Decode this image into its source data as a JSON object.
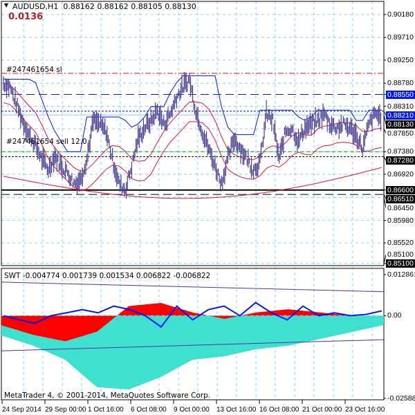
{
  "header": {
    "symbol": "AUDUSD,H1",
    "ohlc": "0.88162 0.88162 0.88105 0.88130",
    "value": "0.0136"
  },
  "orders": {
    "sl_label": "#247461654 sl",
    "sell_label": "#247461654 sell 12.0"
  },
  "indicator": {
    "label": "SWT -0.004774 0.001739 0.001534 0.006822 -0.006822"
  },
  "copyright": "MetaTrader 4, © 2001-2014, MetaQuotes Software Corp.",
  "colors": {
    "bars": "#4a4090",
    "blue": "#0018f0",
    "red": "#e0103a",
    "cyan": "#40e0d0",
    "area_red": "#ff0000",
    "purple": "#5030a0",
    "grid": "#87cefa"
  },
  "chart_data": [
    {
      "type": "line",
      "title": "AUDUSD,H1",
      "price_ticks": [
        "0.90180",
        "0.89710",
        "0.89250",
        "0.88780",
        "0.88310",
        "0.87850",
        "0.87380",
        "0.86920",
        "0.86450",
        "0.85980",
        "0.85520",
        "0.85100"
      ],
      "price_tick_values": [
        0.9018,
        0.8971,
        0.8925,
        0.8878,
        0.8831,
        0.8785,
        0.8738,
        0.8692,
        0.8645,
        0.8598,
        0.8552,
        0.851
      ],
      "ylim": [
        0.851,
        0.9018
      ],
      "time_ticks": [
        "24 Sep 2014",
        "29 Sep 00:00",
        "1 Oct 16:00",
        "6 Oct 08:00",
        "9 Oct 00:00",
        "13 Oct 16:00",
        "16 Oct 08:00",
        "21 Oct 00:00",
        "23 Oct 16:00"
      ],
      "price_tags": [
        {
          "value": "0.88550",
          "price": 0.8855,
          "color": "#0018f0"
        },
        {
          "value": "0.88130",
          "price": 0.8813,
          "color": "#000000"
        },
        {
          "value": "0.88210",
          "price": 0.8821,
          "color": "#0018f0"
        },
        {
          "value": "0.87280",
          "price": 0.8728,
          "color": "#000000"
        },
        {
          "value": "0.86600",
          "price": 0.866,
          "color": "#000000"
        },
        {
          "value": "0.86510",
          "price": 0.8651,
          "color": "#000000"
        },
        {
          "value": "0.85100",
          "price": 0.851,
          "color": "#000000"
        }
      ],
      "levels": [
        {
          "name": "stop-loss",
          "price": 0.8898,
          "color": "#ff0000",
          "dash": "8,3,2,3"
        },
        {
          "name": "blue-dashed",
          "price": 0.8855,
          "color": "#0018f0",
          "dash": "12,6"
        },
        {
          "name": "blue-dotted",
          "price": 0.8821,
          "color": "#0018f0",
          "dash": "3,2"
        },
        {
          "name": "bid",
          "price": 0.8813,
          "color": "#87cefa",
          "dash": ""
        },
        {
          "name": "sell-entry",
          "price": 0.8738,
          "color": "#00c000",
          "dash": "6,3"
        },
        {
          "name": "black-dotted",
          "price": 0.8728,
          "color": "#000000",
          "dash": "3,2"
        },
        {
          "name": "support",
          "price": 0.866,
          "color": "#000000",
          "dash": ""
        },
        {
          "name": "black-dashed",
          "price": 0.8651,
          "color": "#000000",
          "dash": "12,6"
        }
      ],
      "close": [
        0.8878,
        0.8871,
        0.8836,
        0.8801,
        0.8772,
        0.8751,
        0.8723,
        0.8702,
        0.873,
        0.8709,
        0.8695,
        0.8674,
        0.8681,
        0.8723,
        0.8801,
        0.8794,
        0.878,
        0.8723,
        0.8674,
        0.866,
        0.8709,
        0.8765,
        0.8787,
        0.8801,
        0.8822,
        0.8794,
        0.8815,
        0.885,
        0.8871,
        0.8885,
        0.8822,
        0.878,
        0.8744,
        0.8709,
        0.8674,
        0.8723,
        0.8765,
        0.8744,
        0.8723,
        0.8702,
        0.8716,
        0.8815,
        0.8801,
        0.8723,
        0.878,
        0.8787,
        0.8758,
        0.8787,
        0.8794,
        0.8801,
        0.8815,
        0.8794,
        0.8787,
        0.8794,
        0.8787,
        0.8772,
        0.8744,
        0.8794,
        0.8815,
        0.8808
      ]
    },
    {
      "type": "area",
      "title": "SWT",
      "ticks": [
        "0.012861",
        "0.00",
        "-0.025883"
      ],
      "ylim": [
        -0.025883,
        0.012861
      ],
      "lower": [
        -0.0062,
        -0.0094,
        -0.0138,
        -0.0224,
        -0.0231,
        -0.0192,
        -0.0138,
        -0.0127,
        -0.0105,
        -0.0094,
        -0.0073,
        -0.0051,
        -0.0029
      ],
      "red": [
        -0.003,
        -0.006,
        -0.008,
        -0.005,
        0.003,
        0.004,
        0.001,
        -0.001,
        0.001,
        0.002,
        0.001,
        0.0,
        0.0
      ],
      "line": [
        0,
        -0.0013,
        -0.0024,
        0,
        0.0009,
        0.0019,
        0.0009,
        0.003,
        0.0019,
        0,
        -0.0035,
        0.003,
        -0.0013,
        0.0019,
        0.003,
        0,
        0.0041,
        0.0009,
        -0.0013,
        0.003,
        0,
        0.0009,
        0,
        0.0004,
        0.0015
      ],
      "purple_upper": [
        0.0105,
        0.0075
      ],
      "purple_lower": [
        -0.011,
        -0.0075
      ]
    }
  ]
}
